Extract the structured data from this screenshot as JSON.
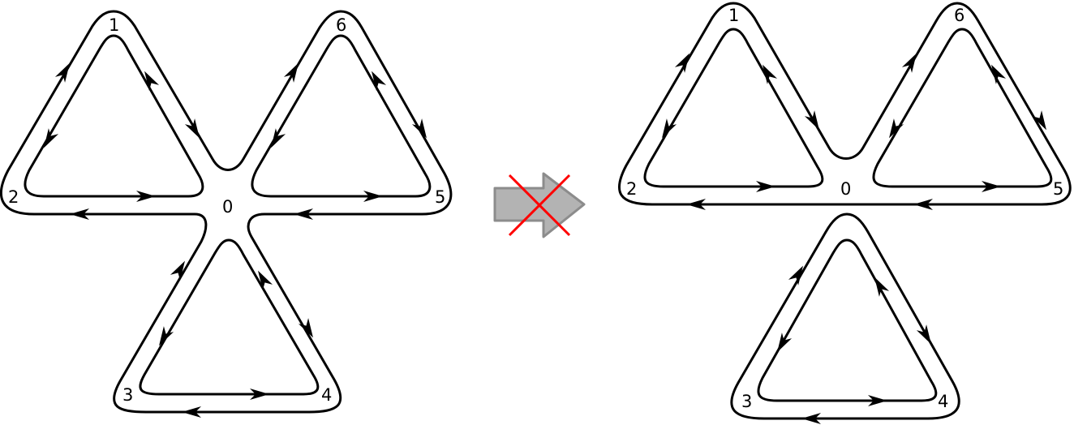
{
  "left_figure": {
    "labels": {
      "n0": "0",
      "n1": "1",
      "n2": "2",
      "n3": "3",
      "n4": "4",
      "n5": "5",
      "n6": "6"
    }
  },
  "right_figure": {
    "labels": {
      "n0": "0",
      "n1": "1",
      "n2": "2",
      "n3": "3",
      "n4": "4",
      "n5": "5",
      "n6": "6"
    }
  },
  "transition": {
    "icon": "crossed-out-arrow-icon",
    "arrow_fill": "#b3b3b3",
    "arrow_stroke": "#8c8c8c",
    "cross_color": "#ff0000"
  }
}
